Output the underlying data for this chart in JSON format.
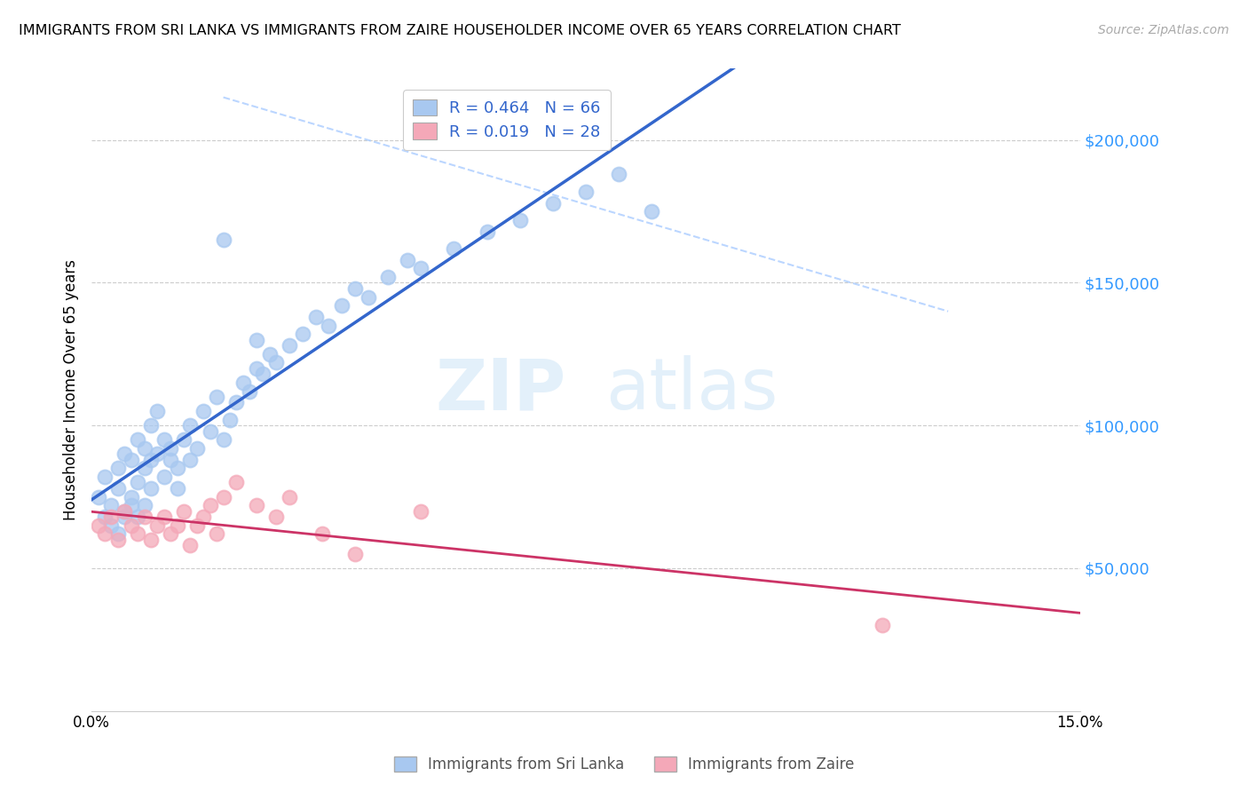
{
  "title": "IMMIGRANTS FROM SRI LANKA VS IMMIGRANTS FROM ZAIRE HOUSEHOLDER INCOME OVER 65 YEARS CORRELATION CHART",
  "source": "Source: ZipAtlas.com",
  "ylabel": "Householder Income Over 65 years",
  "xlim": [
    0.0,
    0.15
  ],
  "ylim": [
    0,
    225000
  ],
  "xticks": [
    0.0,
    0.03,
    0.06,
    0.09,
    0.12,
    0.15
  ],
  "xticklabels": [
    "0.0%",
    "",
    "",
    "",
    "",
    "15.0%"
  ],
  "ytick_positions": [
    50000,
    100000,
    150000,
    200000
  ],
  "ytick_labels": [
    "$50,000",
    "$100,000",
    "$150,000",
    "$200,000"
  ],
  "sri_lanka_R": 0.464,
  "sri_lanka_N": 66,
  "zaire_R": 0.019,
  "zaire_N": 28,
  "sri_lanka_color": "#a8c8f0",
  "sri_lanka_line_color": "#3366cc",
  "zaire_color": "#f4a8b8",
  "zaire_line_color": "#cc3366",
  "diagonal_color": "#aaccff",
  "background_color": "#ffffff",
  "watermark_zip": "ZIP",
  "watermark_atlas": "atlas",
  "sri_lanka_x": [
    0.001,
    0.002,
    0.002,
    0.003,
    0.003,
    0.004,
    0.004,
    0.004,
    0.005,
    0.005,
    0.005,
    0.006,
    0.006,
    0.006,
    0.007,
    0.007,
    0.007,
    0.008,
    0.008,
    0.008,
    0.009,
    0.009,
    0.009,
    0.01,
    0.01,
    0.011,
    0.011,
    0.012,
    0.012,
    0.013,
    0.013,
    0.014,
    0.015,
    0.015,
    0.016,
    0.017,
    0.018,
    0.019,
    0.02,
    0.021,
    0.022,
    0.023,
    0.024,
    0.025,
    0.026,
    0.027,
    0.028,
    0.03,
    0.032,
    0.034,
    0.036,
    0.038,
    0.04,
    0.042,
    0.045,
    0.048,
    0.05,
    0.055,
    0.06,
    0.065,
    0.07,
    0.075,
    0.08,
    0.085,
    0.02,
    0.025
  ],
  "sri_lanka_y": [
    75000,
    68000,
    82000,
    72000,
    65000,
    78000,
    85000,
    62000,
    90000,
    70000,
    68000,
    88000,
    75000,
    72000,
    95000,
    80000,
    68000,
    92000,
    85000,
    72000,
    100000,
    88000,
    78000,
    105000,
    90000,
    95000,
    82000,
    88000,
    92000,
    85000,
    78000,
    95000,
    100000,
    88000,
    92000,
    105000,
    98000,
    110000,
    95000,
    102000,
    108000,
    115000,
    112000,
    120000,
    118000,
    125000,
    122000,
    128000,
    132000,
    138000,
    135000,
    142000,
    148000,
    145000,
    152000,
    158000,
    155000,
    162000,
    168000,
    172000,
    178000,
    182000,
    188000,
    175000,
    165000,
    130000
  ],
  "zaire_x": [
    0.001,
    0.002,
    0.003,
    0.004,
    0.005,
    0.006,
    0.007,
    0.008,
    0.009,
    0.01,
    0.011,
    0.012,
    0.013,
    0.014,
    0.015,
    0.016,
    0.017,
    0.018,
    0.019,
    0.02,
    0.022,
    0.025,
    0.028,
    0.03,
    0.035,
    0.04,
    0.05,
    0.12
  ],
  "zaire_y": [
    65000,
    62000,
    68000,
    60000,
    70000,
    65000,
    62000,
    68000,
    60000,
    65000,
    68000,
    62000,
    65000,
    70000,
    58000,
    65000,
    68000,
    72000,
    62000,
    75000,
    80000,
    72000,
    68000,
    75000,
    62000,
    55000,
    70000,
    30000
  ]
}
